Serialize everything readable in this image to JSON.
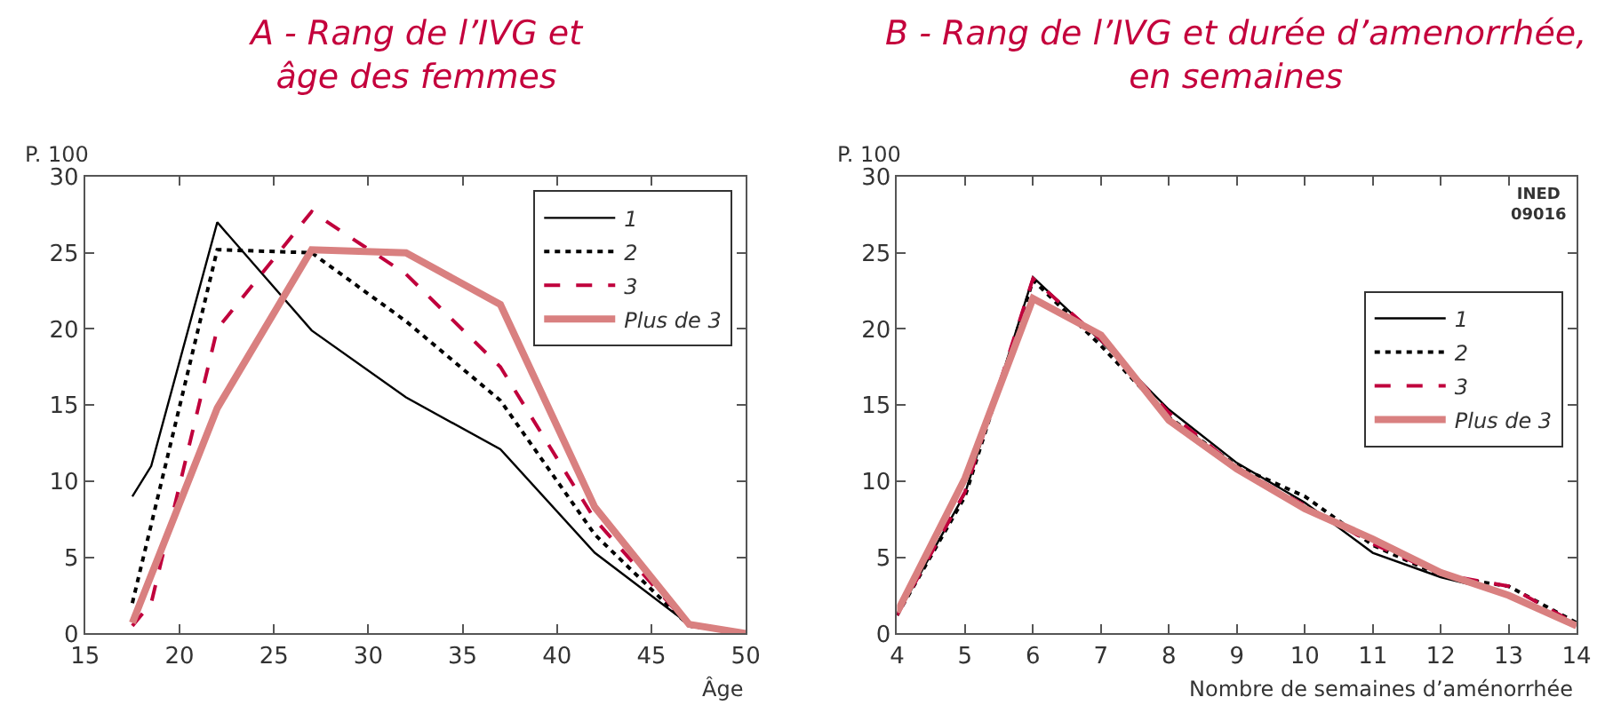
{
  "chart_data": [
    {
      "type": "line",
      "title": "A - Rang de l’IVG et\nâge des femmes",
      "ylabel": "P. 100",
      "xlabel": "Âge",
      "xlim": [
        15,
        50
      ],
      "xticks": [
        15,
        20,
        25,
        30,
        35,
        40,
        45,
        50
      ],
      "ylim": [
        0,
        30
      ],
      "yticks": [
        0,
        5,
        10,
        15,
        20,
        25,
        30
      ],
      "legend": "top right",
      "marker": "none",
      "series": [
        {
          "name": "1",
          "color": "#000000",
          "line_style": "solid",
          "x": [
            17.5,
            18.5,
            22,
            27,
            32,
            37,
            42,
            47,
            50
          ],
          "values": [
            9,
            11,
            27,
            19.9,
            15.5,
            12.1,
            5.3,
            0.6,
            0
          ]
        },
        {
          "name": "2",
          "color": "#000000",
          "line_style": "dotted",
          "x": [
            17.5,
            22,
            27,
            32,
            37,
            42,
            47,
            50
          ],
          "values": [
            2,
            25.2,
            25,
            20.5,
            15.3,
            6.5,
            0.5,
            0
          ]
        },
        {
          "name": "3",
          "color": "#c0003c",
          "line_style": "dashed",
          "x": [
            17.5,
            18.5,
            22,
            27,
            32,
            37,
            42,
            47,
            50
          ],
          "values": [
            0.5,
            2,
            20,
            27.7,
            23.6,
            17.5,
            7.5,
            0.5,
            0
          ]
        },
        {
          "name": "Plus de 3",
          "color": "#d98080",
          "line_style": "solid",
          "x": [
            17.5,
            22,
            27,
            32,
            37,
            42,
            47,
            50
          ],
          "values": [
            0.7,
            14.8,
            25.2,
            25,
            21.6,
            8.3,
            0.6,
            0
          ]
        }
      ]
    },
    {
      "type": "line",
      "title": "B - Rang de l’IVG et durée d’amenorrhée,\nen semaines",
      "ylabel": "P. 100",
      "xlabel": "Nombre de semaines d’aménorrhée",
      "xlim": [
        4,
        14
      ],
      "xticks": [
        4,
        5,
        6,
        7,
        8,
        9,
        10,
        11,
        12,
        13,
        14
      ],
      "ylim": [
        0,
        30
      ],
      "yticks": [
        0,
        5,
        10,
        15,
        20,
        25,
        30
      ],
      "legend": "right",
      "marker": "none",
      "annotations": [
        "INED\n09016"
      ],
      "x": [
        4,
        5,
        6,
        7,
        8,
        9,
        10,
        11,
        12,
        13,
        14
      ],
      "series": [
        {
          "name": "1",
          "color": "#000000",
          "line_style": "solid",
          "values": [
            1.2,
            9.2,
            23.4,
            19.2,
            14.7,
            11.2,
            8.6,
            5.3,
            3.7,
            2.6,
            0.6
          ]
        },
        {
          "name": "2",
          "color": "#000000",
          "line_style": "dotted",
          "values": [
            1.2,
            9.0,
            23.2,
            18.9,
            14.2,
            11.0,
            9.0,
            5.8,
            3.8,
            3.1,
            0.7
          ]
        },
        {
          "name": "3",
          "color": "#c0003c",
          "line_style": "dashed",
          "values": [
            1.2,
            9.3,
            23.3,
            19.3,
            14.5,
            10.9,
            8.4,
            5.9,
            3.9,
            3.1,
            0.6
          ]
        },
        {
          "name": "Plus de 3",
          "color": "#d98080",
          "line_style": "solid",
          "values": [
            1.4,
            10.2,
            22.0,
            19.6,
            14.0,
            10.8,
            8.2,
            6.2,
            4.0,
            2.5,
            0.5
          ]
        }
      ]
    }
  ]
}
